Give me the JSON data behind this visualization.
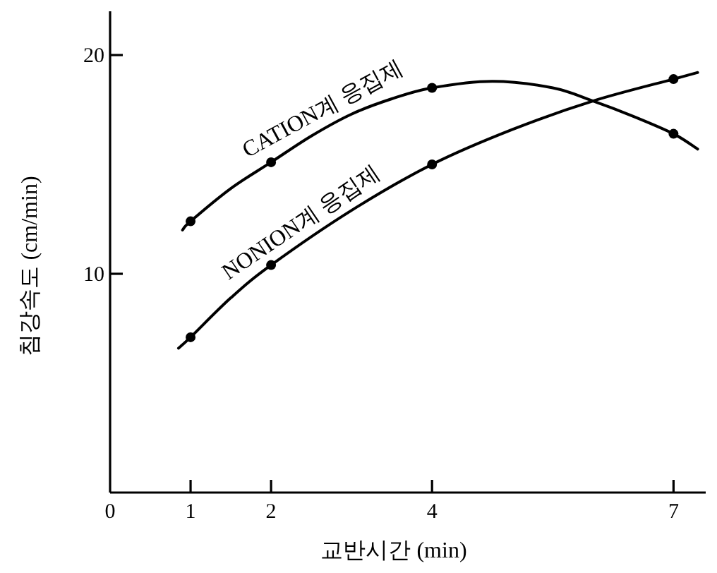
{
  "chart_data": {
    "type": "line",
    "xlabel": "교반시간 (min)",
    "ylabel": "침강속도 (cm/min)",
    "xlim": [
      0,
      7.4
    ],
    "ylim": [
      0,
      22
    ],
    "xticks": [
      0,
      1,
      2,
      4,
      7
    ],
    "yticks": [
      10,
      20
    ],
    "grid": false,
    "legend": false,
    "series": [
      {
        "name": "CATION계  응집제",
        "type": "line",
        "color": "#000000",
        "marker": "none",
        "x": [
          0.9,
          1,
          1.5,
          2,
          2.5,
          3,
          3.5,
          4,
          4.75,
          5.5,
          6,
          6.5,
          7,
          7.3
        ],
        "values": [
          12.0,
          12.4,
          13.9,
          15.1,
          16.3,
          17.3,
          18.0,
          18.5,
          18.8,
          18.5,
          17.9,
          17.2,
          16.4,
          15.7
        ]
      },
      {
        "name": "NONION계  응집제",
        "type": "line",
        "color": "#000000",
        "marker": "none",
        "x": [
          0.85,
          1,
          1.5,
          2,
          3,
          4,
          5,
          6,
          7,
          7.3
        ],
        "values": [
          6.6,
          7.1,
          8.9,
          10.4,
          12.9,
          15.0,
          16.6,
          17.9,
          18.9,
          19.2
        ]
      },
      {
        "type": "scatter",
        "color": "#000000",
        "marker": "circle",
        "x": [
          1,
          2,
          4,
          7
        ],
        "values": [
          12.4,
          15.1,
          18.5,
          16.4
        ]
      },
      {
        "type": "scatter",
        "color": "#000000",
        "marker": "circle",
        "x": [
          1,
          2,
          4,
          7
        ],
        "values": [
          7.1,
          10.4,
          15.0,
          18.9
        ]
      }
    ]
  }
}
